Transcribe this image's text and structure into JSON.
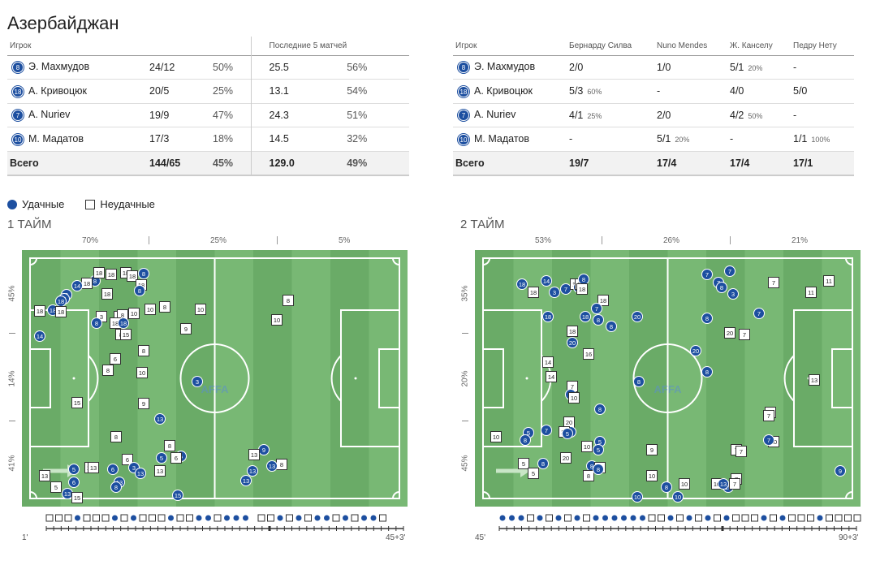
{
  "team": "Азербайджан",
  "table_left": {
    "col_player": "Игрок",
    "col_last5": "Последние 5 матчей",
    "rows": [
      {
        "num": "8",
        "name": "Э. Махмудов",
        "a": "24/12",
        "b": "50%",
        "c": "25.5",
        "d": "56%"
      },
      {
        "num": "18",
        "name": "А. Кривоцюк",
        "a": "20/5",
        "b": "25%",
        "c": "13.1",
        "d": "54%"
      },
      {
        "num": "7",
        "name": "A. Nuriev",
        "a": "19/9",
        "b": "47%",
        "c": "24.3",
        "d": "51%"
      },
      {
        "num": "10",
        "name": "М. Мадатов",
        "a": "17/3",
        "b": "18%",
        "c": "14.5",
        "d": "32%"
      }
    ],
    "total": {
      "label": "Всего",
      "a": "144/65",
      "b": "45%",
      "c": "129.0",
      "d": "49%"
    }
  },
  "table_right": {
    "col_player": "Игрок",
    "opponents": [
      "Бернарду Силва",
      "Nuno Mendes",
      "Ж. Канселу",
      "Педру Нету"
    ],
    "rows": [
      {
        "num": "8",
        "name": "Э. Махмудов",
        "v": [
          [
            "2/0",
            ""
          ],
          [
            "1/0",
            ""
          ],
          [
            "5/1",
            "20%"
          ],
          [
            "-",
            ""
          ]
        ]
      },
      {
        "num": "18",
        "name": "А. Кривоцюк",
        "v": [
          [
            "5/3",
            "60%"
          ],
          [
            "-",
            ""
          ],
          [
            "4/0",
            ""
          ],
          [
            "5/0",
            ""
          ]
        ]
      },
      {
        "num": "7",
        "name": "A. Nuriev",
        "v": [
          [
            "4/1",
            "25%"
          ],
          [
            "2/0",
            ""
          ],
          [
            "4/2",
            "50%"
          ],
          [
            "-",
            ""
          ]
        ]
      },
      {
        "num": "10",
        "name": "М. Мадатов",
        "v": [
          [
            "-",
            ""
          ],
          [
            "5/1",
            "20%"
          ],
          [
            "-",
            ""
          ],
          [
            "1/1",
            "100%"
          ]
        ]
      }
    ],
    "total": {
      "label": "Всего",
      "v": [
        "19/7",
        "17/4",
        "17/4",
        "17/1"
      ]
    }
  },
  "legend": {
    "success": "Удачные",
    "fail": "Неудачные"
  },
  "halves": [
    {
      "title": "1 ТАЙМ",
      "zone_pct": [
        "70%",
        "25%",
        "5%"
      ],
      "side_pct": [
        "45%",
        "14%",
        "41%"
      ],
      "time_start": "1'",
      "time_end": "45+3'",
      "timeline": "sssdsssdsdsssdssddsddd_ssdsdsddsdsdds"
    },
    {
      "title": "2 ТАЙМ",
      "zone_pct": [
        "53%",
        "26%",
        "21%"
      ],
      "side_pct": [
        "35%",
        "20%",
        "45%"
      ],
      "time_start": "45'",
      "time_end": "90+3'",
      "timeline": "dddsdsdsdsddddddssdsdsdsdsssdsdsssdssss"
    }
  ],
  "logo": "AFFA",
  "colors": {
    "pitch": "#78b874",
    "pitch_dark": "#6aab67",
    "success": "#1d4fa0",
    "fail": "#ffffff"
  }
}
